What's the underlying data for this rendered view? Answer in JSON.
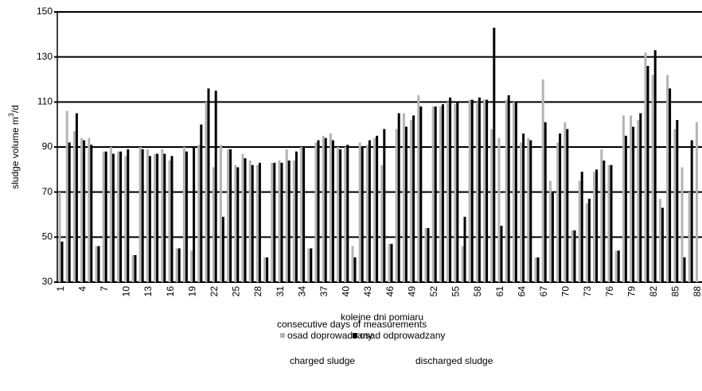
{
  "chart_data": {
    "type": "bar",
    "x_label": "kolejne dni pomiaru",
    "y_label": {
      "text": "sludge volume m",
      "superscript": "3",
      "suffix": "/d"
    },
    "annotations": [
      "consecutive days of measurements",
      "charged sludge",
      "discharged sludge"
    ],
    "categories": [
      "1",
      null,
      null,
      "4",
      null,
      null,
      "7",
      null,
      null,
      "10",
      null,
      null,
      "13",
      null,
      null,
      "16",
      null,
      null,
      "19",
      null,
      null,
      "22",
      null,
      null,
      "25",
      null,
      null,
      "28",
      null,
      null,
      "31",
      null,
      null,
      "34",
      null,
      null,
      "37",
      null,
      null,
      "40",
      null,
      null,
      "43",
      null,
      null,
      "46",
      null,
      null,
      "49",
      null,
      null,
      "52",
      null,
      null,
      "55",
      null,
      null,
      "58",
      null,
      null,
      "61",
      null,
      null,
      "64",
      null,
      null,
      "67",
      null,
      null,
      "70",
      null,
      null,
      "73",
      null,
      null,
      "76",
      null,
      null,
      "79",
      null,
      null,
      "82",
      null,
      null,
      "85",
      null,
      null,
      "88"
    ],
    "series": [
      {
        "name": "osad doprowadzany",
        "color": "#b4b4b4",
        "values": [
          70,
          106,
          97,
          94,
          94,
          46,
          88,
          90,
          88,
          86,
          42,
          90,
          89,
          87,
          89,
          84,
          45,
          90,
          44,
          91,
          110,
          81,
          91,
          89,
          82,
          87,
          84,
          82,
          41,
          83,
          84,
          89,
          84,
          90,
          45,
          92,
          95,
          96,
          90,
          90,
          46,
          92,
          91,
          94,
          82,
          47,
          98,
          105,
          102,
          113,
          54,
          108,
          108,
          110,
          109,
          46,
          111,
          110,
          111,
          98,
          94,
          111,
          110,
          92,
          94,
          41,
          120,
          75,
          92,
          101,
          53,
          75,
          65,
          79,
          89,
          82,
          44,
          104,
          104,
          102,
          132,
          122,
          67,
          122,
          98,
          81,
          70,
          101
        ]
      },
      {
        "name": "osad odprowadzany",
        "color": "#000000",
        "values": [
          48,
          92,
          105,
          93,
          91,
          46,
          88,
          87,
          88,
          89,
          42,
          89,
          86,
          87,
          87,
          86,
          45,
          88,
          90,
          100,
          116,
          115,
          59,
          89,
          81,
          85,
          82,
          83,
          41,
          83,
          83,
          84,
          88,
          90,
          45,
          93,
          94,
          93,
          89,
          91,
          41,
          90,
          93,
          95,
          98,
          47,
          105,
          99,
          104,
          108,
          54,
          108,
          109,
          112,
          110,
          59,
          111,
          112,
          111,
          143,
          55,
          113,
          110,
          96,
          93,
          41,
          101,
          70,
          96,
          98,
          53,
          79,
          67,
          80,
          84,
          82,
          44,
          95,
          99,
          105,
          126,
          133,
          63,
          116,
          102,
          41,
          93,
          null
        ]
      }
    ],
    "ylim": [
      30,
      150
    ],
    "yticks": [
      30,
      50,
      70,
      90,
      110,
      130,
      150
    ],
    "grid": true
  }
}
